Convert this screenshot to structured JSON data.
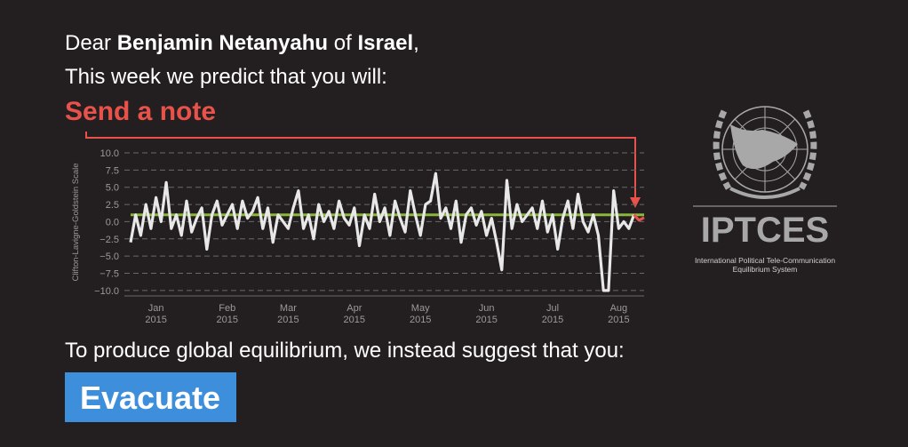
{
  "greeting": {
    "prefix": "Dear",
    "name": "Benjamin Netanyahu",
    "of": "of",
    "country": "Israel",
    "suffix": ","
  },
  "intro": "This week we predict that you will:",
  "prediction": "Send a note",
  "suggestion_intro": "To produce global equilibrium, we instead suggest that you:",
  "suggestion": "Evacuate",
  "logo": {
    "title": "IPTCES",
    "lines": [
      "International Political Tele-Communication",
      "Equilibrium System"
    ]
  },
  "chart_data": {
    "type": "line",
    "y_label": "Clifton-Lavigne-Goldstein Scale",
    "categories": [
      null,
      null,
      null,
      null,
      null,
      "Jan 2015",
      null,
      null,
      null,
      null,
      null,
      null,
      null,
      null,
      null,
      null,
      null,
      null,
      null,
      "Feb 2015",
      null,
      null,
      null,
      null,
      null,
      null,
      null,
      null,
      null,
      null,
      null,
      "Mar 2015",
      null,
      null,
      null,
      null,
      null,
      null,
      null,
      null,
      null,
      null,
      null,
      null,
      "Apr 2015",
      null,
      null,
      null,
      null,
      null,
      null,
      null,
      null,
      null,
      null,
      null,
      null,
      "May 2015",
      null,
      null,
      null,
      null,
      null,
      null,
      null,
      null,
      null,
      null,
      null,
      null,
      "Jun 2015",
      null,
      null,
      null,
      null,
      null,
      null,
      null,
      null,
      null,
      null,
      null,
      null,
      "Jul 2015",
      null,
      null,
      null,
      null,
      null,
      null,
      null,
      null,
      null,
      null,
      null,
      null,
      "Aug 2015",
      null,
      null,
      null,
      null,
      null
    ],
    "series": [
      {
        "color": "#e8e8e8",
        "values": [
          -3,
          1,
          -2,
          2.5,
          -1,
          3.5,
          0,
          5.7,
          -1,
          1,
          -2,
          3,
          -1.5,
          0.5,
          2,
          -4,
          1,
          3,
          -0.5,
          1,
          2.5,
          -1,
          3,
          0.5,
          1.5,
          3.5,
          -1,
          2,
          -3,
          1,
          0,
          -1,
          2,
          4.5,
          -1,
          1,
          -2.5,
          2.5,
          0,
          1.5,
          -1,
          3,
          0.5,
          -0.5,
          2,
          -3.5,
          1,
          -1,
          4,
          0,
          2,
          -2,
          3,
          0.5,
          -1.5,
          4.5,
          1,
          -2,
          2.5,
          3,
          7,
          0.5,
          2,
          -1,
          3,
          -3,
          1,
          2,
          -0.5,
          1.5,
          -2,
          0.5,
          -3,
          -7,
          6,
          -1,
          2.5,
          0,
          1,
          2,
          -1,
          3,
          -1.5,
          1,
          -4,
          0.5,
          3,
          -1,
          4,
          0,
          -1.5,
          1,
          -2,
          -10,
          -10,
          4.5,
          -1,
          0,
          -1,
          1,
          null,
          null
        ]
      },
      {
        "color": "#e8524a",
        "values": [
          null,
          null,
          null,
          null,
          null,
          null,
          null,
          null,
          null,
          null,
          null,
          null,
          null,
          null,
          null,
          null,
          null,
          null,
          null,
          null,
          null,
          null,
          null,
          null,
          null,
          null,
          null,
          null,
          null,
          null,
          null,
          null,
          null,
          null,
          null,
          null,
          null,
          null,
          null,
          null,
          null,
          null,
          null,
          null,
          null,
          null,
          null,
          null,
          null,
          null,
          null,
          null,
          null,
          null,
          null,
          null,
          null,
          null,
          null,
          null,
          null,
          null,
          null,
          null,
          null,
          null,
          null,
          null,
          null,
          null,
          null,
          null,
          null,
          null,
          null,
          null,
          null,
          null,
          null,
          null,
          null,
          null,
          null,
          null,
          null,
          null,
          null,
          null,
          null,
          null,
          null,
          null,
          null,
          null,
          null,
          null,
          null,
          null,
          null,
          1,
          0.2,
          0.6
        ]
      }
    ],
    "reference_line": {
      "value": 1.0,
      "color": "#8db63c"
    },
    "ylim": [
      -10.4,
      10.9
    ],
    "yticks": [
      {
        "value": 10,
        "label": "10.0"
      },
      {
        "value": 7.5,
        "label": "7.5"
      },
      {
        "value": 5,
        "label": "5.0"
      },
      {
        "value": 2.5,
        "label": "2.5"
      },
      {
        "value": 0,
        "label": "0.0"
      },
      {
        "value": -2.5,
        "label": "−2.5"
      },
      {
        "value": -5,
        "label": "−5.0"
      },
      {
        "value": -7.5,
        "label": "−7.5"
      },
      {
        "value": -10,
        "label": "−10.0"
      }
    ],
    "grid": true
  }
}
